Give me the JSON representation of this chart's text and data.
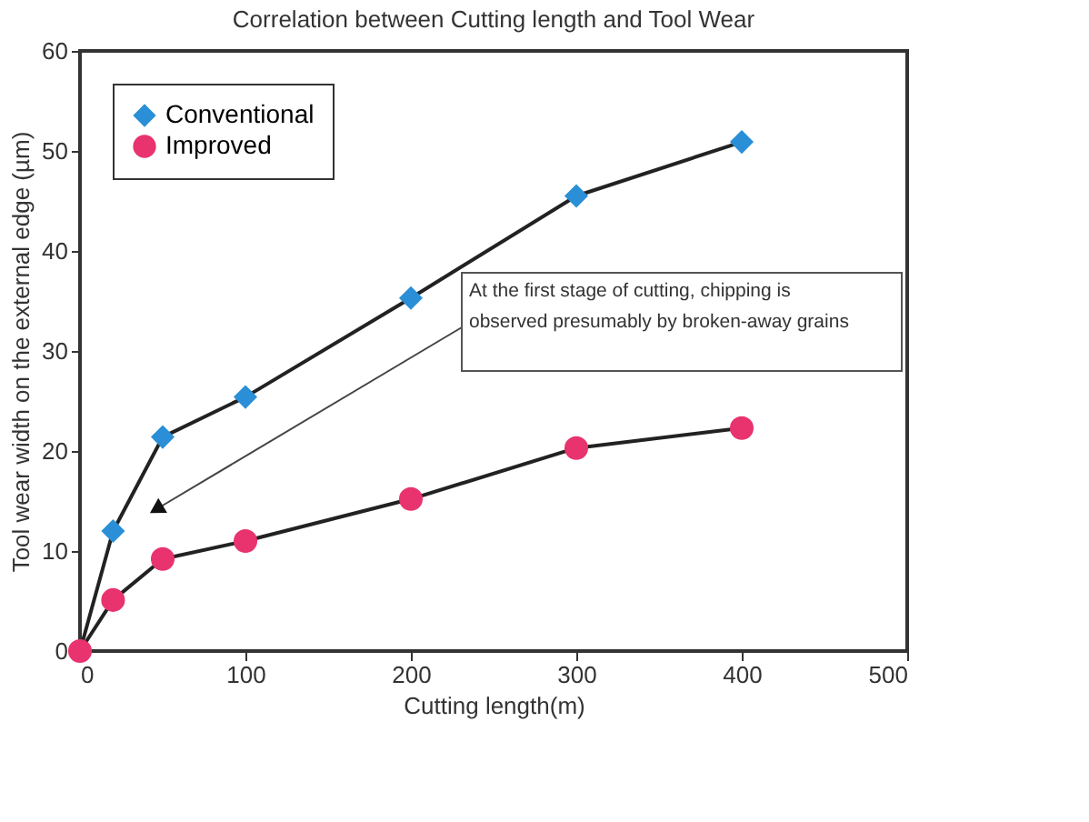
{
  "chart_data": {
    "type": "line",
    "title": "Correlation between Cutting length and Tool Wear",
    "xlabel": "Cutting length(m)",
    "ylabel": "Tool wear width on the external edge (µm)",
    "x": [
      0,
      20,
      50,
      100,
      200,
      300,
      400
    ],
    "series": [
      {
        "name": "Conventional",
        "color": "#2a8fd6",
        "marker": "diamond",
        "values": [
          0,
          12,
          21.4,
          25.4,
          35.3,
          45.5,
          50.9
        ]
      },
      {
        "name": "Improved",
        "color": "#e8336f",
        "marker": "circle",
        "values": [
          0,
          5.1,
          9.2,
          11,
          15.2,
          20.3,
          22.3
        ]
      }
    ],
    "xlim": [
      0,
      500
    ],
    "xticks": [
      0,
      100,
      200,
      300,
      400,
      500
    ],
    "ylim": [
      0,
      60
    ],
    "yticks": [
      0,
      10,
      20,
      30,
      40,
      50,
      60
    ],
    "grid": false,
    "legend": "top left",
    "annotations": [
      "At the first stage of cutting, chipping is\nobserved presumably by broken-away grains"
    ]
  }
}
